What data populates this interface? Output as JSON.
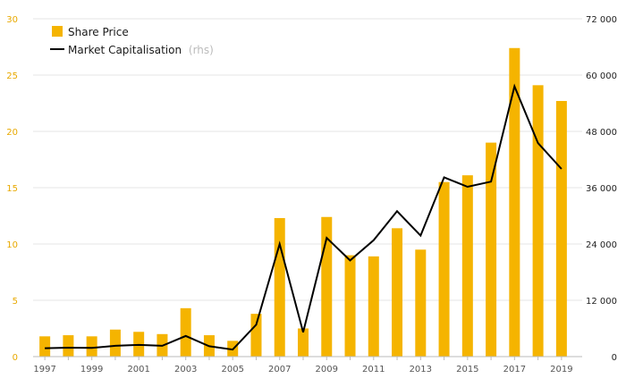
{
  "chart_data": {
    "type": "bar",
    "categories": [
      "1997",
      "1998",
      "1999",
      "2000",
      "2001",
      "2002",
      "2003",
      "2004",
      "2005",
      "2006",
      "2007",
      "2008",
      "2009",
      "2010",
      "2011",
      "2012",
      "2013",
      "2014",
      "2015",
      "2016",
      "2017",
      "2018",
      "2019"
    ],
    "x_tick_labels": [
      "1997",
      "1999",
      "2001",
      "2003",
      "2005",
      "2007",
      "2009",
      "2011",
      "2013",
      "2015",
      "2017",
      "2019"
    ],
    "series": [
      {
        "name": "Share Price",
        "type": "bar",
        "axis": "left",
        "color": "#f5b400",
        "values": [
          1.8,
          1.9,
          1.8,
          2.4,
          2.2,
          2.0,
          4.3,
          1.9,
          1.4,
          3.8,
          12.3,
          2.5,
          12.4,
          9.0,
          8.9,
          11.4,
          9.5,
          15.5,
          16.1,
          19.0,
          27.4,
          24.1,
          22.7
        ]
      },
      {
        "name": "Market Capitalisation",
        "name_suffix": "(rhs)",
        "type": "line",
        "axis": "right",
        "color": "#000000",
        "values": [
          1800,
          1900,
          1850,
          2300,
          2500,
          2300,
          4400,
          2200,
          1500,
          6800,
          24000,
          5200,
          25300,
          20500,
          24800,
          31000,
          25800,
          38200,
          36200,
          37300,
          57600,
          45500,
          40000
        ]
      }
    ],
    "y_left": {
      "lim": [
        0,
        30
      ],
      "ticks": [
        "0",
        "5",
        "10",
        "15",
        "20",
        "25",
        "30"
      ]
    },
    "y_right": {
      "lim": [
        0,
        72000
      ],
      "ticks": [
        "0",
        "12 000",
        "24 000",
        "36 000",
        "48 000",
        "60 000",
        "72 000"
      ]
    },
    "legend_position": "top-left",
    "grid": "horizontal",
    "colors": {
      "bar": "#f5b400",
      "line": "#000000",
      "left_axis_text": "#e8a900",
      "grid": "#e6e6e6"
    }
  }
}
